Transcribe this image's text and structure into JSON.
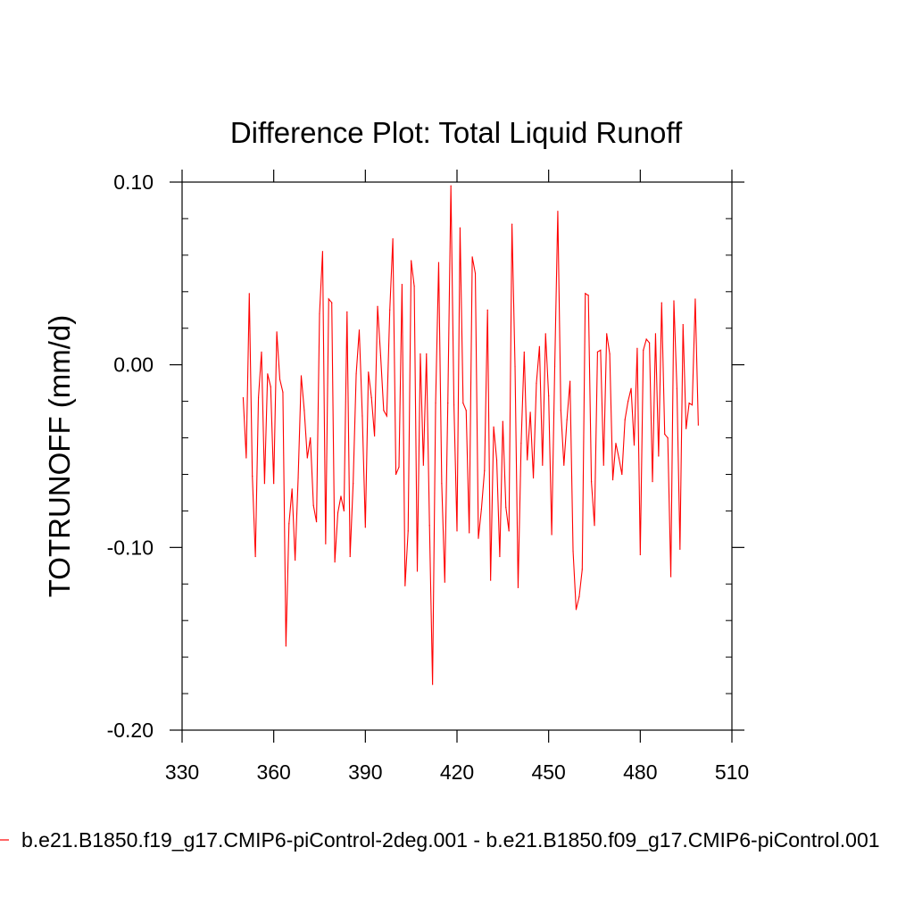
{
  "chart_data": {
    "type": "line",
    "title": "Difference Plot: Total Liquid Runoff",
    "xlabel": "",
    "ylabel": "TOTRUNOFF  (mm/d)",
    "xlim": [
      330,
      510
    ],
    "ylim": [
      -0.2,
      0.1
    ],
    "xticks": [
      330,
      360,
      390,
      420,
      450,
      480,
      510
    ],
    "xtick_labels": [
      "330",
      "360",
      "390",
      "420",
      "450",
      "480",
      "510"
    ],
    "yticks": [
      0.1,
      0.0,
      -0.1,
      -0.2
    ],
    "ytick_labels": [
      "0.10",
      "0.00",
      "-0.10",
      "-0.20"
    ],
    "grid": false,
    "legend": {
      "placement": "bottom",
      "entries": [
        "b.e21.B1850.f19_g17.CMIP6-piControl-2deg.001 - b.e21.B1850.f09_g17.CMIP6-piControl.001"
      ]
    },
    "series": [
      {
        "name": "b.e21.B1850.f19_g17.CMIP6-piControl-2deg.001 - b.e21.B1850.f09_g17.CMIP6-piControl.001",
        "color": "#ff0000",
        "x": [
          350,
          351,
          352,
          353,
          354,
          355,
          356,
          357,
          358,
          359,
          360,
          361,
          362,
          363,
          364,
          365,
          366,
          367,
          368,
          369,
          370,
          371,
          372,
          373,
          374,
          375,
          376,
          377,
          378,
          379,
          380,
          381,
          382,
          383,
          384,
          385,
          386,
          387,
          388,
          389,
          390,
          391,
          392,
          393,
          394,
          395,
          396,
          397,
          398,
          399,
          400,
          401,
          402,
          403,
          404,
          405,
          406,
          407,
          408,
          409,
          410,
          411,
          412,
          413,
          414,
          415,
          416,
          417,
          418,
          419,
          420,
          421,
          422,
          423,
          424,
          425,
          426,
          427,
          428,
          429,
          430,
          431,
          432,
          433,
          434,
          435,
          436,
          437,
          438,
          439,
          440,
          441,
          442,
          443,
          444,
          445,
          446,
          447,
          448,
          449,
          450,
          451,
          452,
          453,
          454,
          455,
          456,
          457,
          458,
          459,
          460,
          461,
          462,
          463,
          464,
          465,
          466,
          467,
          468,
          469,
          470,
          471,
          472,
          473,
          474,
          475,
          476,
          477,
          478,
          479,
          480,
          481,
          482,
          483,
          484,
          485,
          486,
          487,
          488,
          489,
          490,
          491,
          492,
          493,
          494,
          495,
          496,
          497,
          498,
          499
        ],
        "values": [
          -0.018,
          -0.051,
          0.039,
          -0.061,
          -0.105,
          -0.018,
          0.007,
          -0.065,
          -0.005,
          -0.012,
          -0.065,
          0.018,
          -0.008,
          -0.015,
          -0.154,
          -0.087,
          -0.068,
          -0.107,
          -0.062,
          -0.006,
          -0.025,
          -0.051,
          -0.04,
          -0.077,
          -0.086,
          0.028,
          0.062,
          -0.098,
          0.036,
          0.034,
          -0.108,
          -0.081,
          -0.072,
          -0.08,
          0.029,
          -0.105,
          -0.065,
          -0.005,
          0.019,
          -0.028,
          -0.089,
          -0.004,
          -0.018,
          -0.039,
          0.032,
          0.005,
          -0.025,
          -0.028,
          0.03,
          0.069,
          -0.06,
          -0.056,
          0.044,
          -0.121,
          -0.091,
          0.057,
          0.043,
          -0.113,
          0.006,
          -0.055,
          0.006,
          -0.088,
          -0.175,
          -0.021,
          0.056,
          -0.065,
          -0.119,
          -0.021,
          0.098,
          -0.022,
          -0.091,
          0.075,
          -0.021,
          -0.025,
          -0.092,
          0.059,
          0.05,
          -0.095,
          -0.079,
          -0.058,
          0.03,
          -0.118,
          -0.034,
          -0.052,
          -0.105,
          -0.031,
          -0.078,
          -0.091,
          0.077,
          -0.001,
          -0.122,
          -0.043,
          0.007,
          -0.052,
          -0.026,
          -0.062,
          -0.01,
          0.01,
          -0.055,
          0.017,
          -0.017,
          -0.093,
          -0.001,
          0.084,
          -0.025,
          -0.055,
          -0.03,
          -0.009,
          -0.102,
          -0.134,
          -0.127,
          -0.112,
          0.039,
          0.038,
          -0.064,
          -0.088,
          0.007,
          0.008,
          -0.055,
          0.017,
          0.006,
          -0.063,
          -0.043,
          -0.051,
          -0.06,
          -0.03,
          -0.02,
          -0.013,
          -0.044,
          0.009,
          -0.104,
          0.008,
          0.014,
          0.012,
          -0.064,
          0.017,
          -0.05,
          0.034,
          -0.038,
          -0.04,
          -0.116,
          0.035,
          -0.013,
          -0.101,
          0.022,
          -0.035,
          -0.021,
          -0.022,
          0.036,
          -0.033
        ]
      }
    ]
  }
}
